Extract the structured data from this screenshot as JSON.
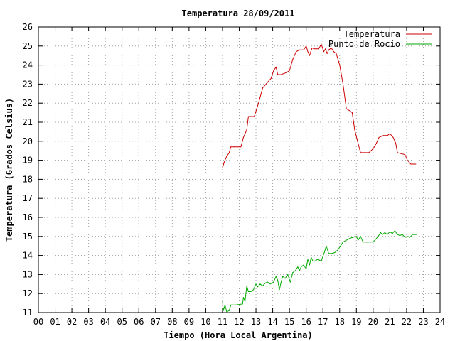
{
  "chart_data": {
    "type": "line",
    "title": "Temperatura 28/09/2011",
    "xlabel": "Tiempo (Hora Local Argentina)",
    "ylabel": "Temperatura (Grados Celsius)",
    "xlim": [
      0,
      24
    ],
    "ylim": [
      11,
      26
    ],
    "xticks": [
      "00",
      "01",
      "02",
      "03",
      "04",
      "05",
      "06",
      "07",
      "08",
      "09",
      "10",
      "11",
      "12",
      "13",
      "14",
      "15",
      "16",
      "17",
      "18",
      "19",
      "20",
      "21",
      "22",
      "23",
      "24"
    ],
    "yticks": [
      "11",
      "12",
      "13",
      "14",
      "15",
      "16",
      "17",
      "18",
      "19",
      "20",
      "21",
      "22",
      "23",
      "24",
      "25",
      "26"
    ],
    "grid": true,
    "legend_position": "top-right",
    "series": [
      {
        "name": "Temperatura",
        "color": "#cc0000",
        "points": [
          [
            11.0,
            18.6
          ],
          [
            11.1,
            18.9
          ],
          [
            11.25,
            19.2
          ],
          [
            11.4,
            19.4
          ],
          [
            11.5,
            19.7
          ],
          [
            11.7,
            19.7
          ],
          [
            12.1,
            19.7
          ],
          [
            12.25,
            20.2
          ],
          [
            12.45,
            20.6
          ],
          [
            12.55,
            21.3
          ],
          [
            12.9,
            21.3
          ],
          [
            13.15,
            22.0
          ],
          [
            13.4,
            22.8
          ],
          [
            13.7,
            23.1
          ],
          [
            13.9,
            23.3
          ],
          [
            14.05,
            23.7
          ],
          [
            14.2,
            23.9
          ],
          [
            14.3,
            23.5
          ],
          [
            14.5,
            23.5
          ],
          [
            14.8,
            23.6
          ],
          [
            15.0,
            23.7
          ],
          [
            15.2,
            24.3
          ],
          [
            15.4,
            24.7
          ],
          [
            15.6,
            24.8
          ],
          [
            15.85,
            24.8
          ],
          [
            16.0,
            25.0
          ],
          [
            16.1,
            24.7
          ],
          [
            16.2,
            24.5
          ],
          [
            16.35,
            24.9
          ],
          [
            16.5,
            24.85
          ],
          [
            16.75,
            24.85
          ],
          [
            16.9,
            25.1
          ],
          [
            17.05,
            24.7
          ],
          [
            17.15,
            24.85
          ],
          [
            17.25,
            24.6
          ],
          [
            17.35,
            24.8
          ],
          [
            17.5,
            24.9
          ],
          [
            17.65,
            24.7
          ],
          [
            17.8,
            24.6
          ],
          [
            18.0,
            24.0
          ],
          [
            18.2,
            23.0
          ],
          [
            18.4,
            21.7
          ],
          [
            18.6,
            21.6
          ],
          [
            18.75,
            21.5
          ],
          [
            18.9,
            20.6
          ],
          [
            19.1,
            19.9
          ],
          [
            19.25,
            19.4
          ],
          [
            19.5,
            19.4
          ],
          [
            19.75,
            19.4
          ],
          [
            20.0,
            19.6
          ],
          [
            20.2,
            19.9
          ],
          [
            20.35,
            20.2
          ],
          [
            20.6,
            20.3
          ],
          [
            20.85,
            20.3
          ],
          [
            21.0,
            20.4
          ],
          [
            21.2,
            20.2
          ],
          [
            21.35,
            19.9
          ],
          [
            21.45,
            19.4
          ],
          [
            21.65,
            19.35
          ],
          [
            21.9,
            19.3
          ],
          [
            22.05,
            19.0
          ],
          [
            22.25,
            18.8
          ],
          [
            22.55,
            18.8
          ]
        ]
      },
      {
        "name": "Punto de Rocío",
        "color": "#00aa00",
        "points": [
          [
            11.0,
            11.6
          ],
          [
            11.05,
            11.1
          ],
          [
            11.15,
            11.4
          ],
          [
            11.25,
            11.05
          ],
          [
            11.4,
            11.1
          ],
          [
            11.5,
            11.4
          ],
          [
            11.8,
            11.4
          ],
          [
            12.2,
            11.45
          ],
          [
            12.25,
            11.8
          ],
          [
            12.35,
            11.6
          ],
          [
            12.45,
            12.4
          ],
          [
            12.55,
            12.1
          ],
          [
            12.7,
            12.1
          ],
          [
            12.85,
            12.2
          ],
          [
            13.0,
            12.5
          ],
          [
            13.1,
            12.35
          ],
          [
            13.25,
            12.5
          ],
          [
            13.4,
            12.4
          ],
          [
            13.55,
            12.55
          ],
          [
            13.7,
            12.6
          ],
          [
            13.85,
            12.5
          ],
          [
            14.05,
            12.6
          ],
          [
            14.2,
            12.9
          ],
          [
            14.3,
            12.7
          ],
          [
            14.4,
            12.2
          ],
          [
            14.5,
            12.6
          ],
          [
            14.6,
            12.9
          ],
          [
            14.75,
            12.8
          ],
          [
            14.9,
            13.0
          ],
          [
            15.05,
            12.6
          ],
          [
            15.2,
            13.1
          ],
          [
            15.35,
            13.2
          ],
          [
            15.5,
            13.4
          ],
          [
            15.6,
            13.2
          ],
          [
            15.7,
            13.4
          ],
          [
            15.85,
            13.5
          ],
          [
            16.0,
            13.3
          ],
          [
            16.1,
            13.8
          ],
          [
            16.2,
            13.5
          ],
          [
            16.3,
            13.9
          ],
          [
            16.4,
            13.7
          ],
          [
            16.5,
            13.7
          ],
          [
            16.7,
            13.8
          ],
          [
            16.9,
            13.7
          ],
          [
            17.0,
            13.95
          ],
          [
            17.1,
            14.2
          ],
          [
            17.2,
            14.5
          ],
          [
            17.35,
            14.1
          ],
          [
            17.5,
            14.1
          ],
          [
            17.7,
            14.15
          ],
          [
            17.9,
            14.3
          ],
          [
            18.05,
            14.5
          ],
          [
            18.2,
            14.7
          ],
          [
            18.4,
            14.8
          ],
          [
            18.6,
            14.9
          ],
          [
            18.8,
            14.95
          ],
          [
            19.0,
            15.0
          ],
          [
            19.1,
            14.8
          ],
          [
            19.25,
            15.0
          ],
          [
            19.4,
            14.7
          ],
          [
            19.6,
            14.7
          ],
          [
            19.8,
            14.7
          ],
          [
            20.0,
            14.7
          ],
          [
            20.15,
            14.85
          ],
          [
            20.3,
            15.0
          ],
          [
            20.45,
            15.2
          ],
          [
            20.55,
            15.1
          ],
          [
            20.7,
            15.2
          ],
          [
            20.85,
            15.1
          ],
          [
            21.0,
            15.25
          ],
          [
            21.15,
            15.15
          ],
          [
            21.3,
            15.3
          ],
          [
            21.45,
            15.1
          ],
          [
            21.6,
            15.05
          ],
          [
            21.75,
            15.1
          ],
          [
            21.9,
            14.95
          ],
          [
            22.05,
            15.0
          ],
          [
            22.2,
            14.95
          ],
          [
            22.35,
            15.1
          ],
          [
            22.6,
            15.1
          ]
        ]
      }
    ]
  }
}
